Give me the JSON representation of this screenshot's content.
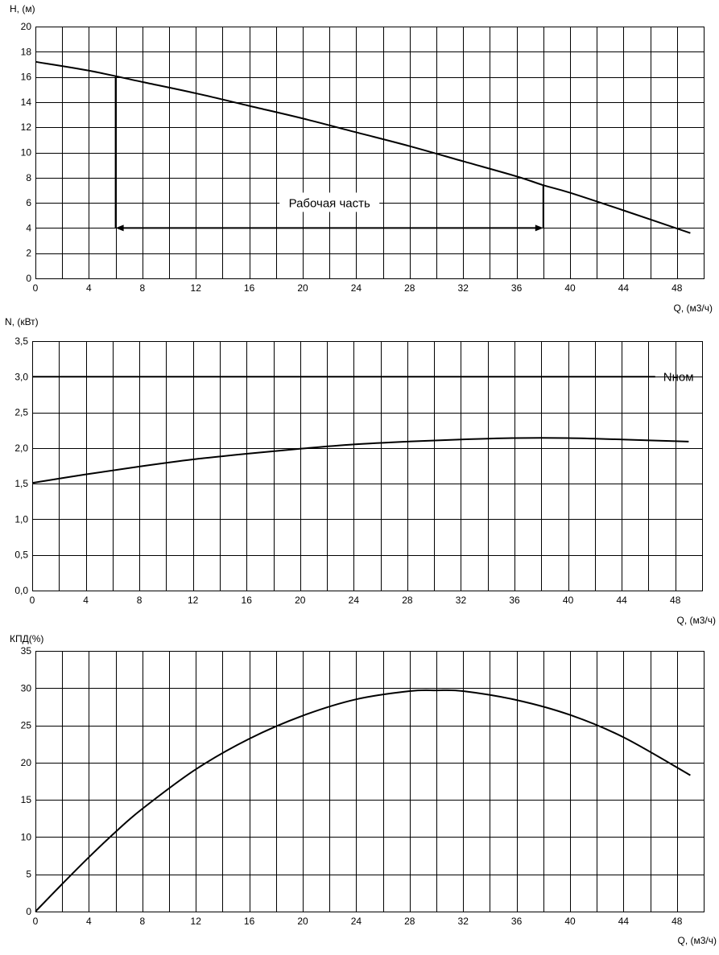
{
  "chart_data": [
    {
      "type": "line",
      "ylabel": "H, (м)",
      "xlabel": "Q, (м3/ч)",
      "xlim": [
        0,
        50
      ],
      "ylim": [
        0,
        20
      ],
      "x_grid_step": 2,
      "y_grid_step": 2,
      "x_ticks": [
        0,
        4,
        8,
        12,
        16,
        20,
        24,
        28,
        32,
        36,
        40,
        44,
        48
      ],
      "y_ticks": [
        0,
        2,
        4,
        6,
        8,
        10,
        12,
        14,
        16,
        18,
        20
      ],
      "y_decimals": 0,
      "series": [
        {
          "x": [
            0,
            4,
            8,
            12,
            16,
            20,
            24,
            28,
            32,
            36,
            38,
            40,
            44,
            49
          ],
          "y": [
            17.2,
            16.5,
            15.6,
            14.7,
            13.7,
            12.7,
            11.6,
            10.5,
            9.3,
            8.1,
            7.4,
            6.8,
            5.4,
            3.6
          ]
        }
      ],
      "annotations": [
        {
          "text": "Рабочая часть",
          "x_from": 6,
          "x_to": 38,
          "y": 4,
          "y_at_from": 16,
          "y_at_to": 7.4
        }
      ]
    },
    {
      "type": "line",
      "ylabel": "N, (кВт)",
      "xlabel": "Q, (м3/ч)",
      "xlim": [
        0,
        50
      ],
      "ylim": [
        0,
        3.5
      ],
      "x_grid_step": 2,
      "y_grid_step": 0.5,
      "x_ticks": [
        0,
        4,
        8,
        12,
        16,
        20,
        24,
        28,
        32,
        36,
        40,
        44,
        48
      ],
      "y_ticks": [
        0,
        0.5,
        1.0,
        1.5,
        2.0,
        2.5,
        3.0,
        3.5
      ],
      "y_decimals": 1,
      "decimal_separator": ",",
      "series": [
        {
          "x": [
            0,
            4,
            8,
            12,
            16,
            20,
            24,
            28,
            32,
            36,
            40,
            44,
            49
          ],
          "y": [
            1.51,
            1.63,
            1.74,
            1.84,
            1.92,
            1.99,
            2.05,
            2.09,
            2.12,
            2.14,
            2.14,
            2.12,
            2.09
          ]
        }
      ],
      "reference_line": {
        "label": "Nном",
        "y": 3.0,
        "x_from": 0,
        "x_to": 46.5
      }
    },
    {
      "type": "line",
      "ylabel": "КПД(%)",
      "xlabel": "Q, (м3/ч)",
      "xlim": [
        0,
        50
      ],
      "ylim": [
        0,
        35
      ],
      "x_grid_step": 2,
      "y_grid_step": 5,
      "x_ticks": [
        0,
        4,
        8,
        12,
        16,
        20,
        24,
        28,
        32,
        36,
        40,
        44,
        48
      ],
      "y_ticks": [
        0,
        5,
        10,
        15,
        20,
        25,
        30,
        35
      ],
      "y_decimals": 0,
      "series": [
        {
          "x": [
            0,
            2,
            4,
            6,
            8,
            12,
            16,
            20,
            24,
            28,
            30,
            32,
            36,
            40,
            44,
            49
          ],
          "y": [
            0,
            3.7,
            7.3,
            10.7,
            13.8,
            19.1,
            23.2,
            26.3,
            28.5,
            29.6,
            29.7,
            29.6,
            28.4,
            26.4,
            23.4,
            18.3
          ]
        }
      ]
    }
  ]
}
